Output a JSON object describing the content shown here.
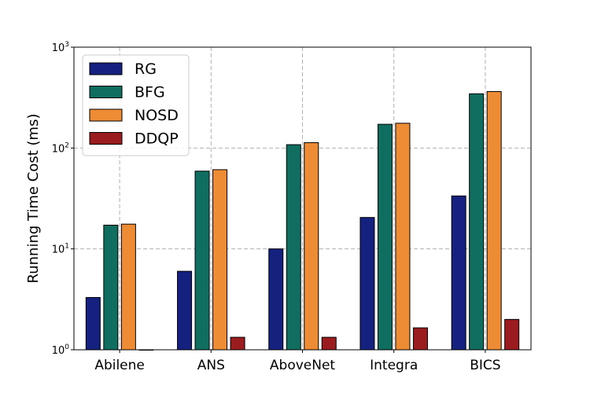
{
  "chart_data": {
    "type": "bar",
    "title": "",
    "xlabel": "",
    "ylabel": "Running Time Cost (ms)",
    "yscale": "log",
    "ylim": [
      1,
      1000
    ],
    "yticks": [
      1,
      10,
      100,
      1000
    ],
    "ytick_labels": [
      {
        "base": "10",
        "exp": "0"
      },
      {
        "base": "10",
        "exp": "1"
      },
      {
        "base": "10",
        "exp": "2"
      },
      {
        "base": "10",
        "exp": "3"
      }
    ],
    "grid": true,
    "legend_position": "upper-left",
    "categories": [
      "Abilene",
      "ANS",
      "AboveNet",
      "Integra",
      "BICS"
    ],
    "series": [
      {
        "name": "RG",
        "color": "#15217f",
        "values": [
          3.3,
          6.0,
          10.0,
          20.5,
          33.5
        ]
      },
      {
        "name": "BFG",
        "color": "#0f6e5f",
        "values": [
          17.2,
          59.0,
          108.0,
          172.0,
          345.0
        ]
      },
      {
        "name": "NOSD",
        "color": "#ee8c35",
        "values": [
          17.6,
          61.0,
          113.0,
          176.0,
          363.0
        ]
      },
      {
        "name": "DDQP",
        "color": "#9b1c1f",
        "values": [
          1.0,
          1.33,
          1.33,
          1.65,
          2.0
        ]
      }
    ]
  }
}
